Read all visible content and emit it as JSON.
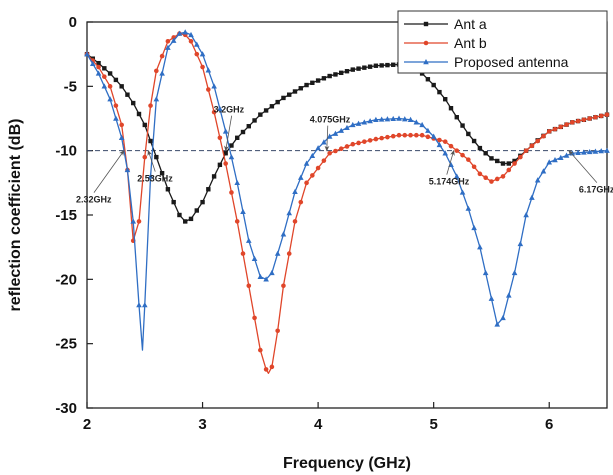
{
  "chart_data": {
    "type": "line",
    "xlabel": "Frequency (GHz)",
    "ylabel": "reflection coefficient (dB)",
    "xlim": [
      2,
      6.5
    ],
    "ylim": [
      -30,
      0
    ],
    "xticks": [
      2,
      3,
      4,
      5,
      6
    ],
    "yticks": [
      0,
      -5,
      -10,
      -15,
      -20,
      -25,
      -30
    ],
    "reference_line": {
      "y": -10,
      "style": "dashed"
    },
    "legend": {
      "position": "top-right"
    },
    "series": [
      {
        "name": "Ant a",
        "color": "#1a1a1a",
        "marker": "square",
        "x": [
          2.0,
          2.1,
          2.2,
          2.3,
          2.4,
          2.5,
          2.6,
          2.7,
          2.8,
          2.85,
          2.9,
          3.0,
          3.1,
          3.2,
          3.3,
          3.5,
          3.7,
          3.9,
          4.1,
          4.3,
          4.5,
          4.7,
          4.8,
          4.9,
          5.0,
          5.1,
          5.2,
          5.3,
          5.4,
          5.5,
          5.6,
          5.65,
          5.7,
          5.8,
          5.9,
          6.0,
          6.2,
          6.5
        ],
        "y": [
          -2.5,
          -3.2,
          -4.0,
          -5.0,
          -6.3,
          -8.0,
          -10.5,
          -13.0,
          -15.0,
          -15.5,
          -15.3,
          -14.0,
          -12.0,
          -10.2,
          -9.0,
          -7.2,
          -5.9,
          -4.9,
          -4.2,
          -3.7,
          -3.4,
          -3.3,
          -3.5,
          -4.0,
          -4.9,
          -6.0,
          -7.4,
          -8.7,
          -9.8,
          -10.6,
          -11.0,
          -11.0,
          -10.8,
          -10.0,
          -9.2,
          -8.5,
          -7.8,
          -7.2
        ]
      },
      {
        "name": "Ant b",
        "color": "#e0462a",
        "marker": "circle",
        "x": [
          2.0,
          2.1,
          2.2,
          2.3,
          2.35,
          2.4,
          2.45,
          2.5,
          2.55,
          2.6,
          2.7,
          2.8,
          2.85,
          2.9,
          3.0,
          3.1,
          3.2,
          3.3,
          3.4,
          3.5,
          3.55,
          3.57,
          3.6,
          3.65,
          3.7,
          3.8,
          3.9,
          4.1,
          4.3,
          4.5,
          4.7,
          4.9,
          5.1,
          5.3,
          5.4,
          5.5,
          5.6,
          5.8,
          6.0,
          6.2,
          6.5
        ],
        "y": [
          -2.5,
          -3.5,
          -5.0,
          -8.0,
          -11.5,
          -17.0,
          -15.5,
          -10.5,
          -6.5,
          -3.8,
          -1.5,
          -0.9,
          -1.0,
          -1.5,
          -3.5,
          -7.0,
          -11.0,
          -15.5,
          -20.5,
          -25.5,
          -27.0,
          -27.3,
          -26.8,
          -24.0,
          -20.5,
          -15.5,
          -12.5,
          -10.2,
          -9.5,
          -9.1,
          -8.8,
          -8.8,
          -9.3,
          -10.7,
          -11.8,
          -12.4,
          -12.0,
          -10.0,
          -8.5,
          -7.8,
          -7.2
        ]
      },
      {
        "name": "Proposed antenna",
        "color": "#2f6ec4",
        "marker": "triangle",
        "x": [
          2.0,
          2.1,
          2.2,
          2.3,
          2.35,
          2.4,
          2.45,
          2.48,
          2.5,
          2.55,
          2.6,
          2.7,
          2.8,
          2.85,
          2.9,
          3.0,
          3.1,
          3.2,
          3.3,
          3.4,
          3.5,
          3.55,
          3.6,
          3.7,
          3.8,
          3.9,
          4.0,
          4.1,
          4.3,
          4.5,
          4.7,
          4.8,
          4.9,
          5.0,
          5.1,
          5.2,
          5.3,
          5.4,
          5.5,
          5.55,
          5.6,
          5.7,
          5.8,
          5.9,
          6.0,
          6.2,
          6.5
        ],
        "y": [
          -2.5,
          -4.0,
          -6.0,
          -9.0,
          -11.5,
          -15.5,
          -22.0,
          -25.5,
          -22.0,
          -12.0,
          -6.0,
          -2.0,
          -0.9,
          -0.8,
          -1.0,
          -2.5,
          -5.0,
          -8.5,
          -12.5,
          -17.0,
          -19.8,
          -20.0,
          -19.5,
          -16.5,
          -13.2,
          -11.0,
          -9.8,
          -8.9,
          -8.0,
          -7.6,
          -7.5,
          -7.6,
          -8.0,
          -8.9,
          -10.2,
          -12.0,
          -14.5,
          -17.5,
          -21.5,
          -23.5,
          -23.0,
          -19.5,
          -15.0,
          -12.3,
          -10.9,
          -10.2,
          -10.0
        ]
      }
    ],
    "annotations": [
      {
        "text": "2.32GHz",
        "x": 2.32,
        "y": -10
      },
      {
        "text": "2.53GHz",
        "x": 2.53,
        "y": -10
      },
      {
        "text": "3.2GHz",
        "x": 3.2,
        "y": -10
      },
      {
        "text": "4.075GHz",
        "x": 4.075,
        "y": -10
      },
      {
        "text": "5.174GHz",
        "x": 5.174,
        "y": -10
      },
      {
        "text": "6.17GHz",
        "x": 6.17,
        "y": -10
      }
    ]
  }
}
